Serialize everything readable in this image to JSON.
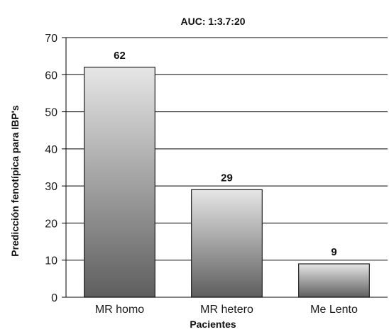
{
  "chart_data": {
    "type": "bar",
    "title": "AUC: 1:3.7:20",
    "xlabel": "Pacientes",
    "ylabel": "Predicción fenotípica para IBP's",
    "categories": [
      "MR homo",
      "MR hetero",
      "Me Lento"
    ],
    "values": [
      62,
      29,
      9
    ],
    "data_labels": [
      "62",
      "29",
      "9"
    ],
    "ylim": [
      0,
      70
    ],
    "yticks": [
      0,
      10,
      20,
      30,
      40,
      50,
      60,
      70
    ],
    "grid": true,
    "legend": "none",
    "bar_gradient": [
      "#e6e6e6",
      "#5e5e5e"
    ],
    "bar_edge_color": "#222222",
    "grid_color": "#000000"
  }
}
